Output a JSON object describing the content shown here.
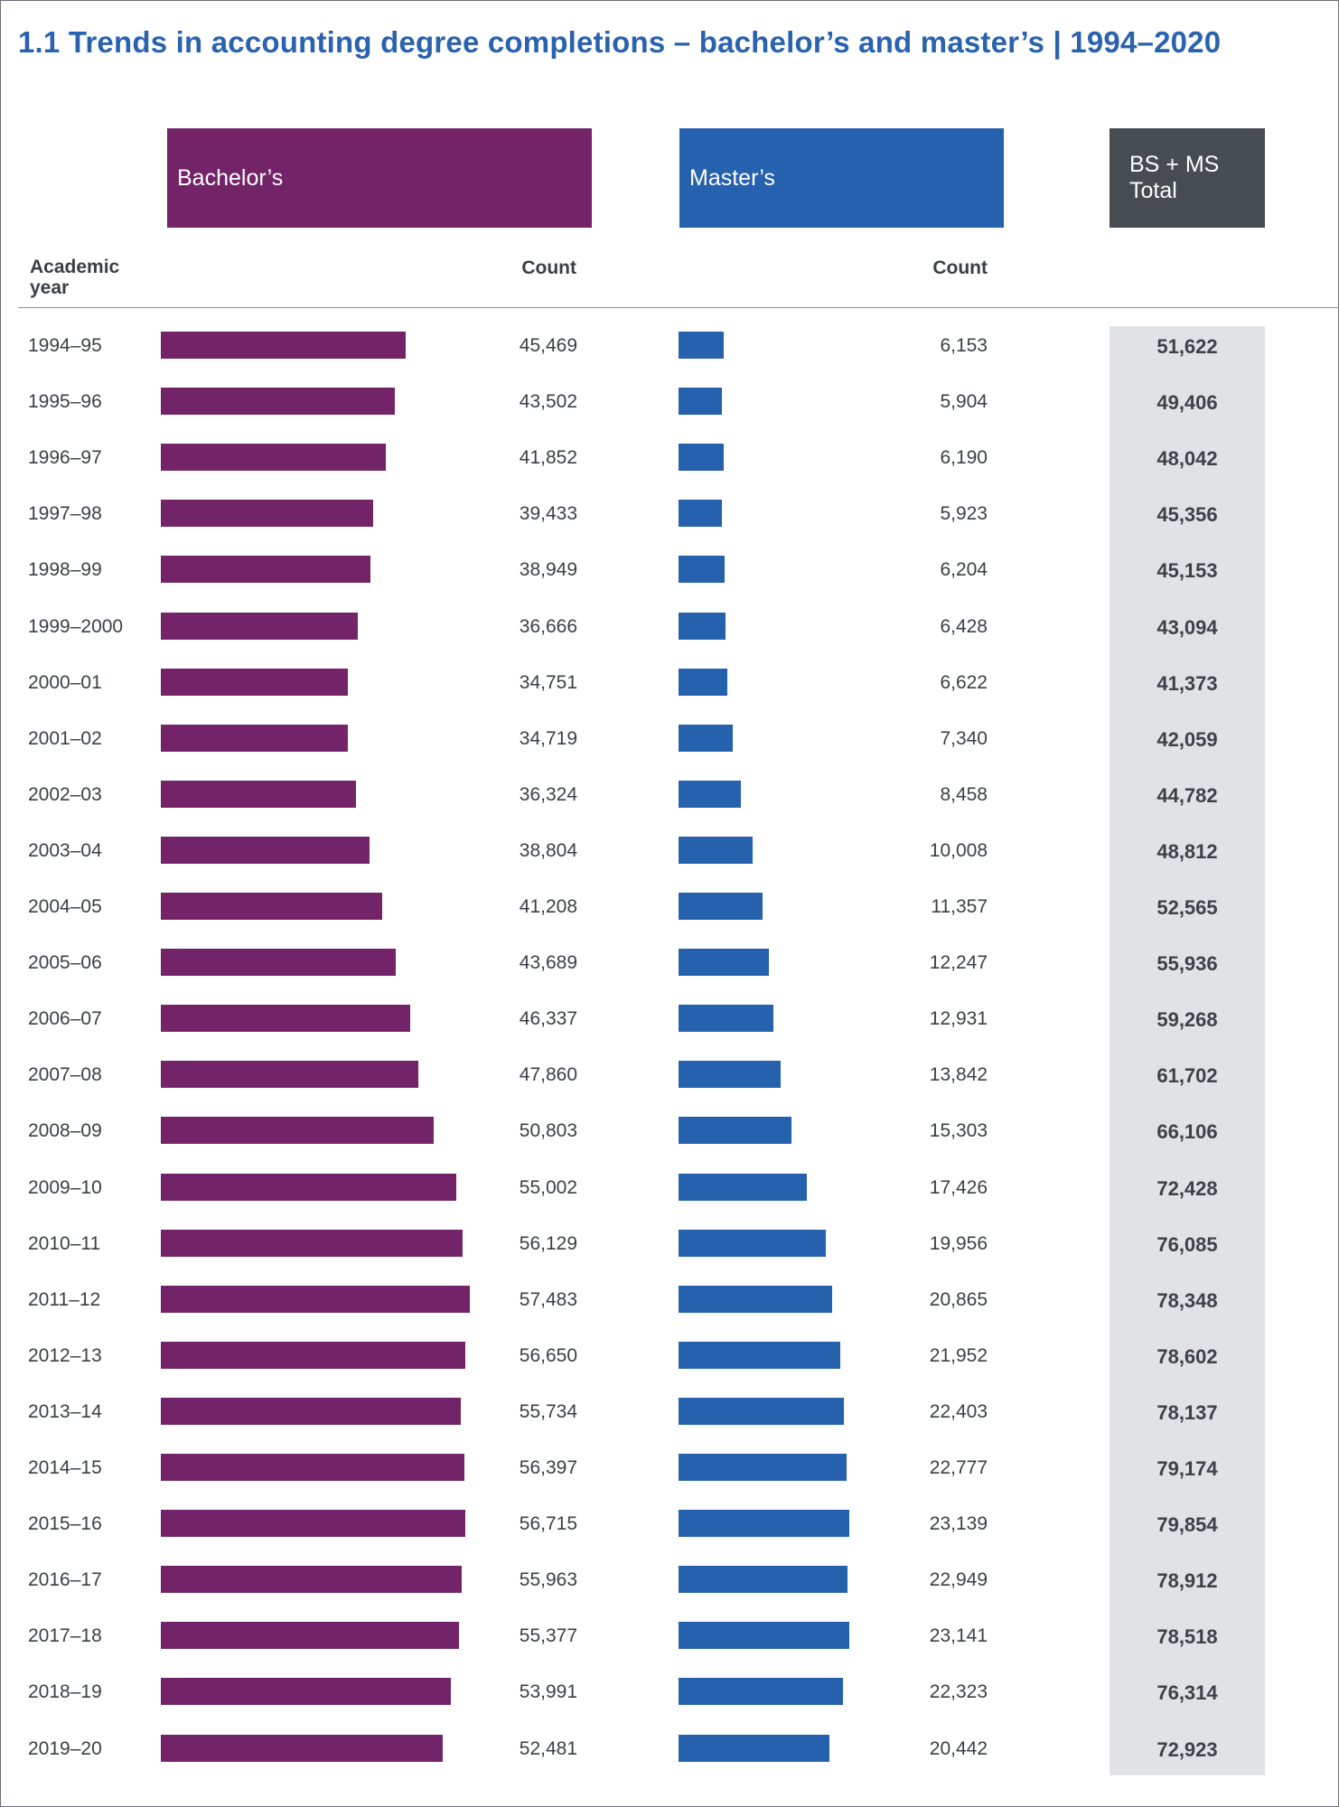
{
  "title": "1.1 Trends in accounting degree completions – bachelor’s and master’s  |  1994–2020",
  "headers": {
    "bachelor": "Bachelor’s",
    "master": "Master’s",
    "total": "BS + MS\nTotal"
  },
  "columns": {
    "year": "Academic\nyear",
    "bachelor_count": "Count",
    "master_count": "Count"
  },
  "colors": {
    "bachelor": "#732469",
    "master": "#2561ad",
    "total_header": "#474b52",
    "total_band": "#e1e2e6",
    "title": "#2a63ad"
  },
  "chart_data": {
    "type": "bar",
    "orientation": "horizontal",
    "title": "1.1 Trends in accounting degree completions – bachelor’s and master’s  |  1994–2020",
    "categories": [
      "1994–95",
      "1995–96",
      "1996–97",
      "1997–98",
      "1998–99",
      "1999–2000",
      "2000–01",
      "2001–02",
      "2002–03",
      "2003–04",
      "2004–05",
      "2005–06",
      "2006–07",
      "2007–08",
      "2008–09",
      "2009–10",
      "2010–11",
      "2011–12",
      "2012–13",
      "2013–14",
      "2014–15",
      "2015–16",
      "2016–17",
      "2017–18",
      "2018–19",
      "2019–20"
    ],
    "series": [
      {
        "name": "Bachelor’s",
        "values": [
          45469,
          43502,
          41852,
          39433,
          38949,
          36666,
          34751,
          34719,
          36324,
          38804,
          41208,
          43689,
          46337,
          47860,
          50803,
          55002,
          56129,
          57483,
          56650,
          55734,
          56397,
          56715,
          55963,
          55377,
          53991,
          52481
        ]
      },
      {
        "name": "Master’s",
        "values": [
          6153,
          5904,
          6190,
          5923,
          6204,
          6428,
          6622,
          7340,
          8458,
          10008,
          11357,
          12247,
          12931,
          13842,
          15303,
          17426,
          19956,
          20865,
          21952,
          22403,
          22777,
          23139,
          22949,
          23141,
          22323,
          20442
        ]
      },
      {
        "name": "BS + MS Total",
        "values": [
          51622,
          49406,
          48042,
          45356,
          45153,
          43094,
          41373,
          42059,
          44782,
          48812,
          52565,
          55936,
          59268,
          61702,
          66106,
          72428,
          76085,
          78348,
          78602,
          78137,
          79174,
          79854,
          78912,
          78518,
          76314,
          72923
        ]
      }
    ],
    "display": {
      "bachelor": [
        "45,469",
        "43,502",
        "41,852",
        "39,433",
        "38,949",
        "36,666",
        "34,751",
        "34,719",
        "36,324",
        "38,804",
        "41,208",
        "43,689",
        "46,337",
        "47,860",
        "50,803",
        "55,002",
        "56,129",
        "57,483",
        "56,650",
        "55,734",
        "56,397",
        "56,715",
        "55,963",
        "55,377",
        "53,991",
        "52,481"
      ],
      "master": [
        "6,153",
        "5,904",
        "6,190",
        "5,923",
        "6,204",
        "6,428",
        "6,622",
        "7,340",
        "8,458",
        "10,008",
        "11,357",
        "12,247",
        "12,931",
        "13,842",
        "15,303",
        "17,426",
        "19,956",
        "20,865",
        "21,952",
        "22,403",
        "22,777",
        "23,139",
        "22,949",
        "23,141",
        "22,323",
        "20,442"
      ],
      "total": [
        "51,622",
        "49,406",
        "48,042",
        "45,356",
        "45,153",
        "43,094",
        "41,373",
        "42,059",
        "44,782",
        "48,812",
        "52,565",
        "55,936",
        "59,268",
        "61,702",
        "66,106",
        "72,428",
        "76,085",
        "78,348",
        "78,602",
        "78,137",
        "79,174",
        "79,854",
        "78,912",
        "78,518",
        "76,314",
        "72,923"
      ]
    },
    "xlim": [
      0,
      84000
    ],
    "grid": false
  }
}
